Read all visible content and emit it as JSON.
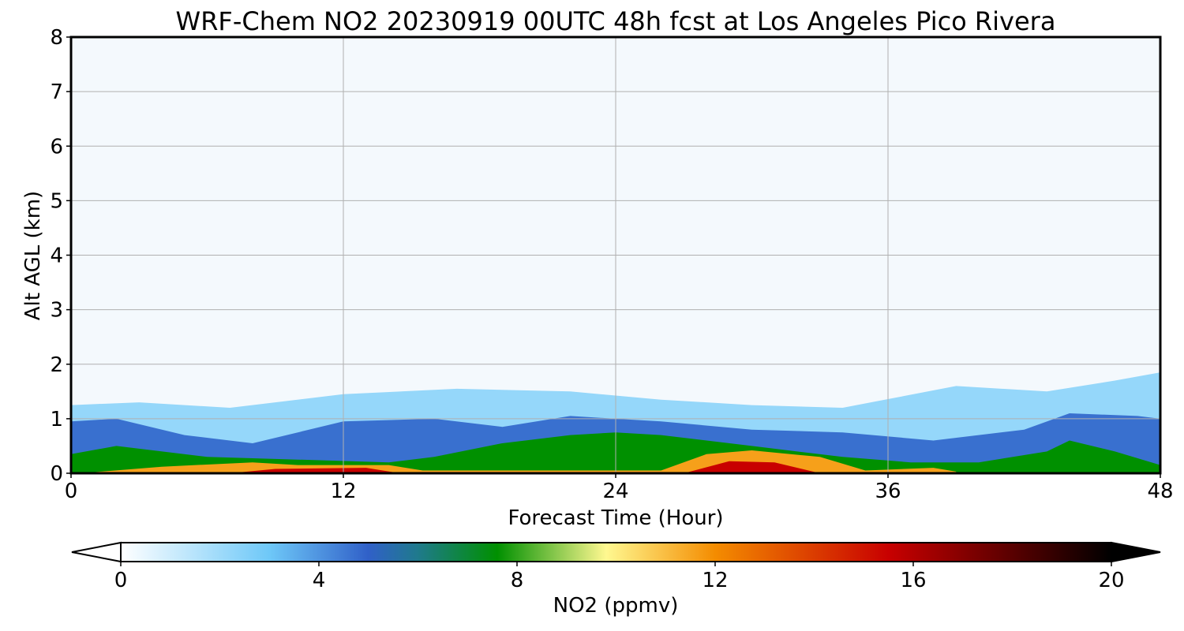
{
  "chart_data": {
    "type": "heatmap",
    "title": "WRF-Chem NO2  20230919 00UTC 48h fcst at Los Angeles Pico Rivera",
    "xlabel": "Forecast Time (Hour)",
    "ylabel": "Alt AGL (km)",
    "xlim": [
      0,
      48
    ],
    "ylim": [
      0,
      8
    ],
    "xticks": [
      "0",
      "12",
      "24",
      "36",
      "48"
    ],
    "yticks": [
      "0",
      "1",
      "2",
      "3",
      "4",
      "5",
      "6",
      "7",
      "8"
    ],
    "grid": true,
    "colorbar": {
      "label": "NO2  (ppmv)",
      "range": [
        0,
        20
      ],
      "extend": "both",
      "ticks": [
        "0",
        "4",
        "8",
        "12",
        "16",
        "20"
      ],
      "stops": [
        {
          "v": 0,
          "color": "#ffffff"
        },
        {
          "v": 3,
          "color": "#6ec8f8"
        },
        {
          "v": 5,
          "color": "#3060c8"
        },
        {
          "v": 6,
          "color": "#1f7a8c"
        },
        {
          "v": 7.6,
          "color": "#009000"
        },
        {
          "v": 9.8,
          "color": "#fff890"
        },
        {
          "v": 12,
          "color": "#f48c00"
        },
        {
          "v": 15.5,
          "color": "#c80000"
        },
        {
          "v": 20,
          "color": "#000000"
        }
      ],
      "background_color": "#f4f9fd"
    },
    "series": [
      {
        "name": "top of light-blue layer (km)",
        "x": [
          0,
          3,
          7,
          12,
          17,
          22,
          26,
          30,
          34,
          39,
          43,
          46,
          48
        ],
        "y": [
          1.25,
          1.3,
          1.2,
          1.45,
          1.55,
          1.5,
          1.35,
          1.25,
          1.2,
          1.6,
          1.5,
          1.7,
          1.85
        ]
      },
      {
        "name": "top of blue layer (km)",
        "x": [
          0,
          2,
          5,
          8,
          12,
          16,
          19,
          22,
          24,
          26,
          30,
          34,
          38,
          42,
          44,
          47,
          48
        ],
        "y": [
          0.95,
          1.0,
          0.7,
          0.55,
          0.95,
          1.0,
          0.85,
          1.05,
          1.0,
          0.95,
          0.8,
          0.75,
          0.6,
          0.8,
          1.1,
          1.05,
          1.0
        ]
      },
      {
        "name": "top of green layer (km)",
        "x": [
          0,
          2,
          6,
          10,
          14,
          16,
          19,
          22,
          24,
          26,
          30,
          34,
          37,
          40,
          43,
          44,
          46,
          48
        ],
        "y": [
          0.35,
          0.5,
          0.3,
          0.25,
          0.2,
          0.3,
          0.55,
          0.7,
          0.75,
          0.7,
          0.5,
          0.3,
          0.2,
          0.2,
          0.4,
          0.6,
          0.4,
          0.15
        ]
      },
      {
        "name": "top of yellow-orange layer (km)",
        "x": [
          1,
          4,
          8,
          10,
          14,
          15.5,
          26,
          28,
          30,
          33,
          35,
          38,
          39
        ],
        "y": [
          0.02,
          0.12,
          0.2,
          0.15,
          0.15,
          0.05,
          0.05,
          0.35,
          0.42,
          0.3,
          0.05,
          0.1,
          0.03
        ]
      },
      {
        "name": "top of red layer (km)",
        "x": [
          7,
          9,
          13,
          14.5,
          27,
          29,
          31,
          33
        ],
        "y": [
          0,
          0.08,
          0.1,
          0,
          0,
          0.22,
          0.2,
          0
        ]
      }
    ]
  }
}
